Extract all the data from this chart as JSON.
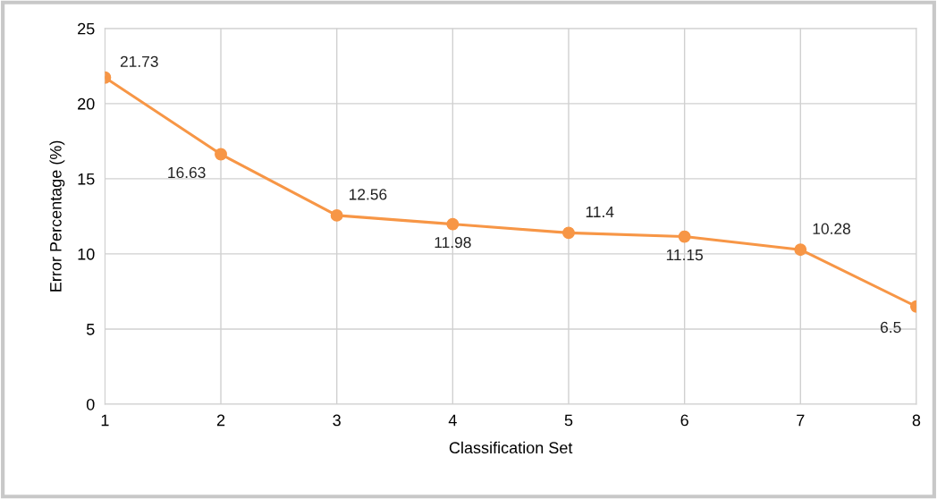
{
  "chart_data": {
    "type": "line",
    "xlabel": "Classification Set",
    "ylabel": "Error Percentage (%)",
    "x": [
      1,
      2,
      3,
      4,
      5,
      6,
      7,
      8
    ],
    "series": [
      {
        "color": "#f79646",
        "values": [
          21.73,
          16.63,
          12.56,
          11.98,
          11.4,
          11.15,
          10.28,
          6.5
        ]
      }
    ],
    "xlim": [
      1,
      8
    ],
    "xticks": [
      1,
      2,
      3,
      4,
      5,
      6,
      7,
      8
    ],
    "ylim": [
      0,
      25
    ],
    "yticks": [
      0,
      5,
      10,
      15,
      20,
      25
    ],
    "grid": true,
    "marker": "circle",
    "line_style": "solid",
    "data_labels": true,
    "legend": false
  }
}
